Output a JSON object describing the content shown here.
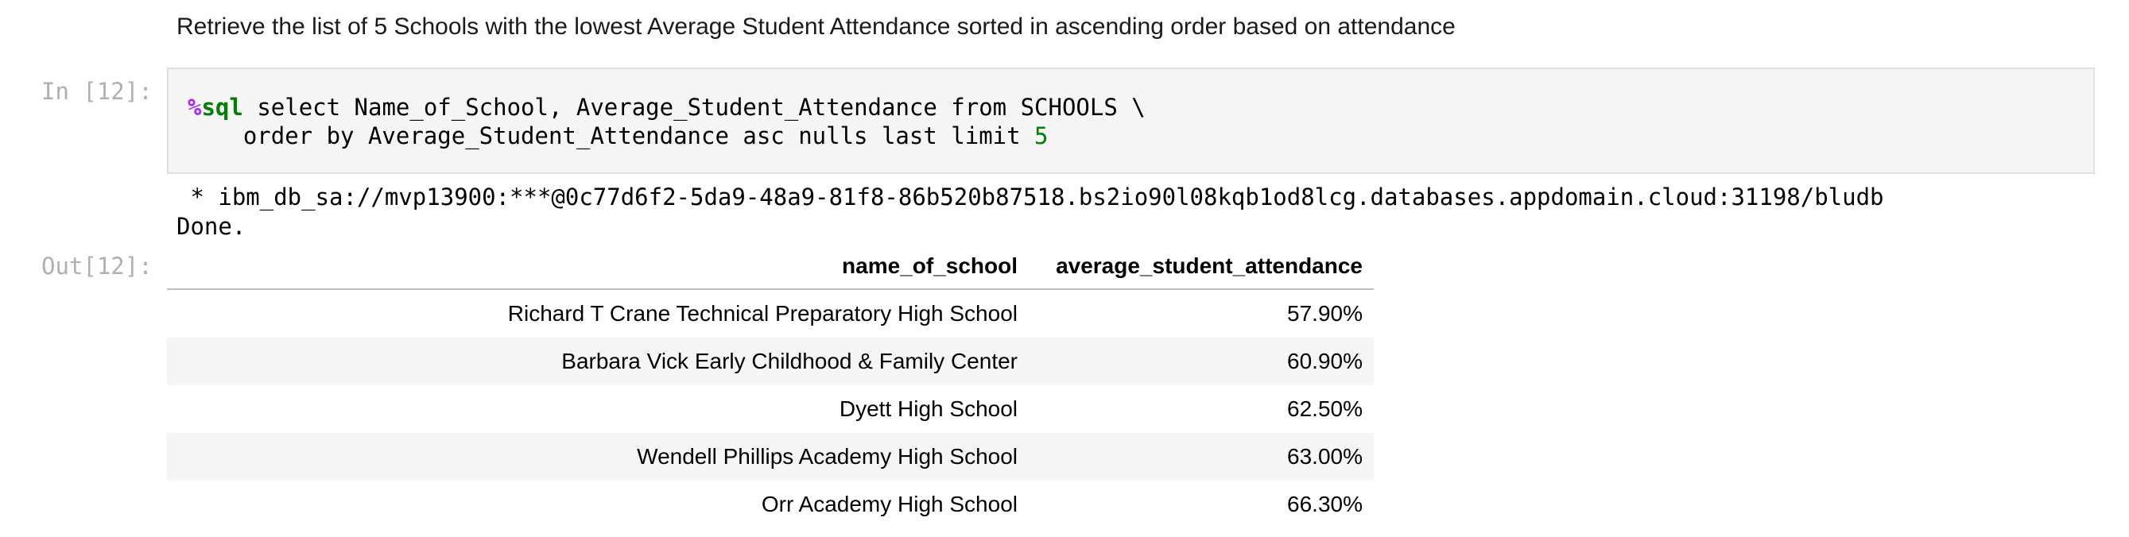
{
  "markdown": {
    "text": "Retrieve the list of 5 Schools with the lowest Average Student Attendance sorted in ascending order based on attendance"
  },
  "code_cell": {
    "prompt": "In [12]:",
    "magic_percent": "%",
    "magic_name": "sql",
    "line1_rest": " select Name_of_School, Average_Student_Attendance from SCHOOLS \\",
    "line2_text": "    order by Average_Student_Attendance asc nulls last limit ",
    "line2_number": "5"
  },
  "stdout": {
    "line1": " * ibm_db_sa://mvp13900:***@0c77d6f2-5da9-48a9-81f8-86b520b87518.bs2io90l08kqb1od8lcg.databases.appdomain.cloud:31198/bludb",
    "line2": "Done."
  },
  "output_cell": {
    "prompt": "Out[12]:",
    "columns": [
      "name_of_school",
      "average_student_attendance"
    ],
    "rows": [
      [
        "Richard T Crane Technical Preparatory High School",
        "57.90%"
      ],
      [
        "Barbara Vick Early Childhood & Family Center",
        "60.90%"
      ],
      [
        "Dyett High School",
        "62.50%"
      ],
      [
        "Wendell Phillips Academy High School",
        "63.00%"
      ],
      [
        "Orr Academy High School",
        "66.30%"
      ]
    ]
  },
  "colors": {
    "prompt": "#b0b0b0",
    "code_background": "#f5f5f5",
    "magic_percent": "#aa22ff",
    "magic_keyword": "#008000",
    "number": "#008000",
    "table_stripe": "#f5f5f5"
  }
}
